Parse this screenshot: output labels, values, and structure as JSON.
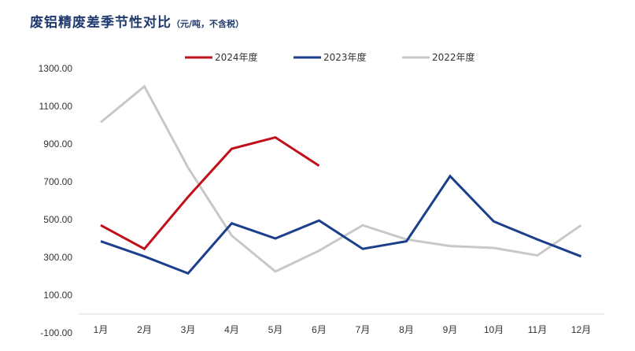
{
  "title": "废铝精废差季节性对比",
  "subtitle": "（元/吨，不含税）",
  "chart_data": {
    "type": "line",
    "categories": [
      "1月",
      "2月",
      "3月",
      "4月",
      "5月",
      "6月",
      "7月",
      "8月",
      "9月",
      "10月",
      "11月",
      "12月"
    ],
    "y_ticks": [
      "-100.00",
      "100.00",
      "300.00",
      "500.00",
      "700.00",
      "900.00",
      "1100.00",
      "1300.00"
    ],
    "ylim": [
      -100,
      1300
    ],
    "grid": false,
    "legend_position": "top",
    "series": [
      {
        "name": "2024年度",
        "color": "#c0101a",
        "values": [
          470,
          345,
          620,
          875,
          935,
          785,
          null,
          null,
          null,
          null,
          null,
          null
        ]
      },
      {
        "name": "2023年度",
        "color": "#1c3f8c",
        "values": [
          385,
          305,
          215,
          480,
          400,
          495,
          345,
          385,
          730,
          490,
          395,
          305
        ]
      },
      {
        "name": "2022年度",
        "color": "#c8c8c8",
        "values": [
          1015,
          1205,
          775,
          415,
          225,
          335,
          470,
          395,
          360,
          350,
          310,
          470
        ]
      }
    ]
  }
}
